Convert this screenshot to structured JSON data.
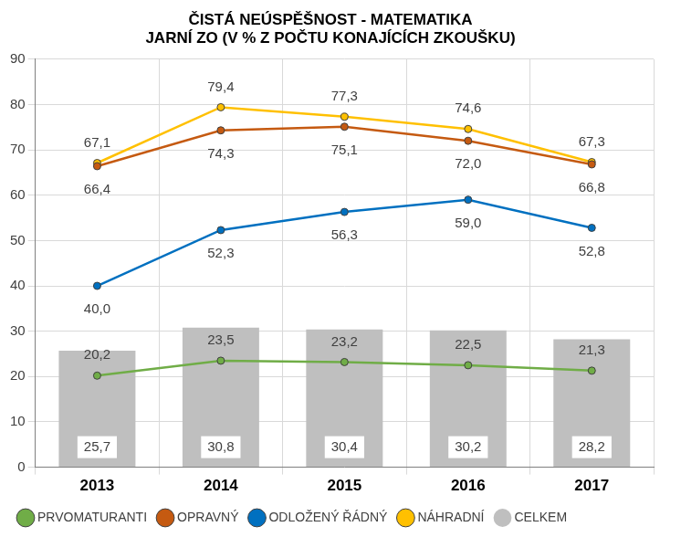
{
  "chart_data": {
    "type": "bar",
    "title": [
      "ČISTÁ NEÚSPĚŠNOST - MATEMATIKA",
      "JARNÍ ZO (V % Z POČTU KONAJÍCÍCH ZKOUŠKU)"
    ],
    "categories": [
      "2013",
      "2014",
      "2015",
      "2016",
      "2017"
    ],
    "series": [
      {
        "name": "CELKEM",
        "type": "bar",
        "color": "#bfbfbf",
        "values": [
          25.7,
          30.8,
          30.4,
          30.2,
          28.2
        ],
        "value_labels": [
          "25,7",
          "30,8",
          "30,4",
          "30,2",
          "28,2"
        ]
      },
      {
        "name": "PRVOMATURANTI",
        "type": "line",
        "marker": "circle",
        "color": "#70ad47",
        "values": [
          20.2,
          23.5,
          23.2,
          22.5,
          21.3
        ],
        "value_labels": [
          "20,2",
          "23,5",
          "23,2",
          "22,5",
          "21,3"
        ]
      },
      {
        "name": "OPRAVNÝ",
        "type": "line",
        "marker": "circle",
        "color": "#c55a11",
        "values": [
          66.4,
          74.3,
          75.1,
          72.0,
          66.8
        ],
        "value_labels": [
          "66,4",
          "74,3",
          "75,1",
          "72,0",
          "66,8"
        ]
      },
      {
        "name": "ODLOŽENÝ ŘÁDNÝ",
        "type": "line",
        "marker": "circle",
        "color": "#0070c0",
        "values": [
          40.0,
          52.3,
          56.3,
          59.0,
          52.8
        ],
        "value_labels": [
          "40,0",
          "52,3",
          "56,3",
          "59,0",
          "52,8"
        ]
      },
      {
        "name": "NÁHRADNÍ",
        "type": "line",
        "marker": "circle",
        "color": "#ffc000",
        "values": [
          67.1,
          79.4,
          77.3,
          74.6,
          67.3
        ],
        "value_labels": [
          "67,1",
          "79,4",
          "77,3",
          "74,6",
          "67,3"
        ]
      }
    ],
    "ylim": [
      0,
      90
    ],
    "yticks": [
      0,
      10,
      20,
      30,
      40,
      50,
      60,
      70,
      80,
      90
    ],
    "grid": true,
    "legend": "bottom",
    "data_labels": true
  }
}
